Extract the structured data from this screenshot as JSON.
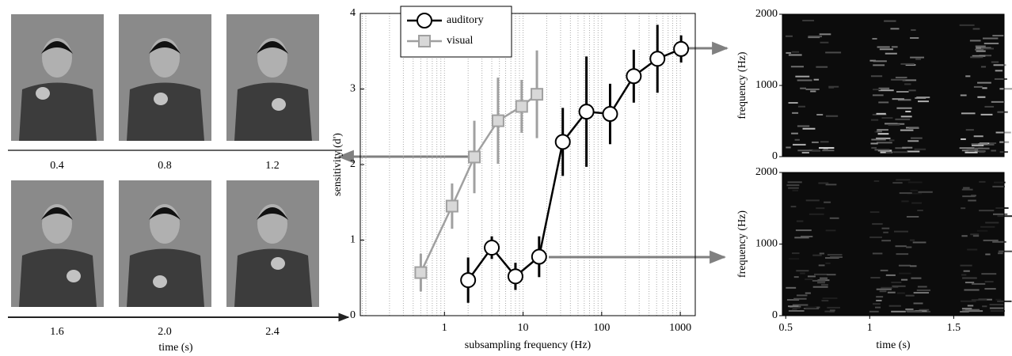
{
  "frames": {
    "labels": [
      "0.4",
      "0.8",
      "1.2",
      "1.6",
      "2.0",
      "2.4"
    ],
    "xlabel": "time (s)"
  },
  "chart_data": [
    {
      "type": "line",
      "xlabel": "subsampling frequency (Hz)",
      "ylabel": "sensitivity (d')",
      "xscale": "log",
      "xlim": [
        0.085,
        1550
      ],
      "xticks": [
        1,
        10,
        100,
        1000
      ],
      "ylim": [
        0,
        4
      ],
      "yticks": [
        0,
        1,
        2,
        3,
        4
      ],
      "grid": true,
      "legend": "upper left",
      "series": [
        {
          "name": "auditory",
          "color": "#000000",
          "marker": "circle",
          "x": [
            2,
            4,
            8,
            16,
            32,
            64,
            128,
            256,
            512,
            1024
          ],
          "values": [
            0.47,
            0.9,
            0.52,
            0.78,
            2.3,
            2.7,
            2.67,
            3.17,
            3.4,
            3.53
          ],
          "errors": [
            0.3,
            0.15,
            0.18,
            0.27,
            0.45,
            0.73,
            0.4,
            0.35,
            0.45,
            0.18
          ]
        },
        {
          "name": "visual",
          "color": "#a0a0a0",
          "marker": "square",
          "x": [
            0.5,
            1.25,
            2.4,
            4.8,
            9.6,
            15
          ],
          "values": [
            0.57,
            1.45,
            2.1,
            2.58,
            2.77,
            2.93
          ],
          "errors": [
            0.25,
            0.3,
            0.48,
            0.57,
            0.35,
            0.58
          ]
        }
      ]
    },
    {
      "type": "spectrogram",
      "ylabel": "frequency (Hz)",
      "ylim": [
        0,
        2000
      ],
      "yticks": [
        0,
        1000,
        2000
      ]
    },
    {
      "type": "spectrogram",
      "ylabel": "frequency (Hz)",
      "xlabel": "time (s)",
      "xlim": [
        0.48,
        1.8
      ],
      "xticks": [
        0.5,
        1,
        1.5
      ],
      "ylim": [
        0,
        2000
      ],
      "yticks": [
        0,
        1000,
        2000
      ]
    }
  ]
}
